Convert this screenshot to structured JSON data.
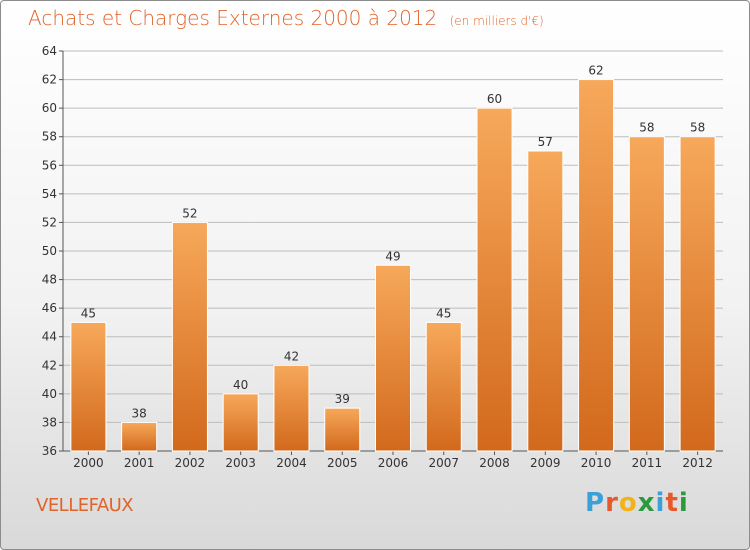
{
  "title": "Achats et Charges Externes 2000 à 2012",
  "unit": "(en milliers d'€)",
  "commune": "VELLEFAUX",
  "logo": {
    "text": "Proxiti",
    "letter_colors": [
      "#3aa0d8",
      "#e8582a",
      "#f2b21b",
      "#2a9a3c",
      "#3aa0d8",
      "#e8582a",
      "#2a9a3c"
    ]
  },
  "colors": {
    "title": "#e0642a",
    "bar_top": "#f7a85a",
    "bar_bottom": "#d2691c",
    "grid": "#bdbdbd"
  },
  "chart_data": {
    "type": "bar",
    "categories": [
      "2000",
      "2001",
      "2002",
      "2003",
      "2004",
      "2005",
      "2006",
      "2007",
      "2008",
      "2009",
      "2010",
      "2011",
      "2012"
    ],
    "values": [
      45,
      38,
      52,
      40,
      42,
      39,
      49,
      45,
      60,
      57,
      62,
      58,
      58
    ],
    "title": "Achats et Charges Externes 2000 à 2012",
    "ylim": [
      36,
      64
    ],
    "yticks": [
      36,
      38,
      40,
      42,
      44,
      46,
      48,
      50,
      52,
      54,
      56,
      58,
      60,
      62,
      64
    ],
    "grid": true,
    "data_labels": true
  }
}
